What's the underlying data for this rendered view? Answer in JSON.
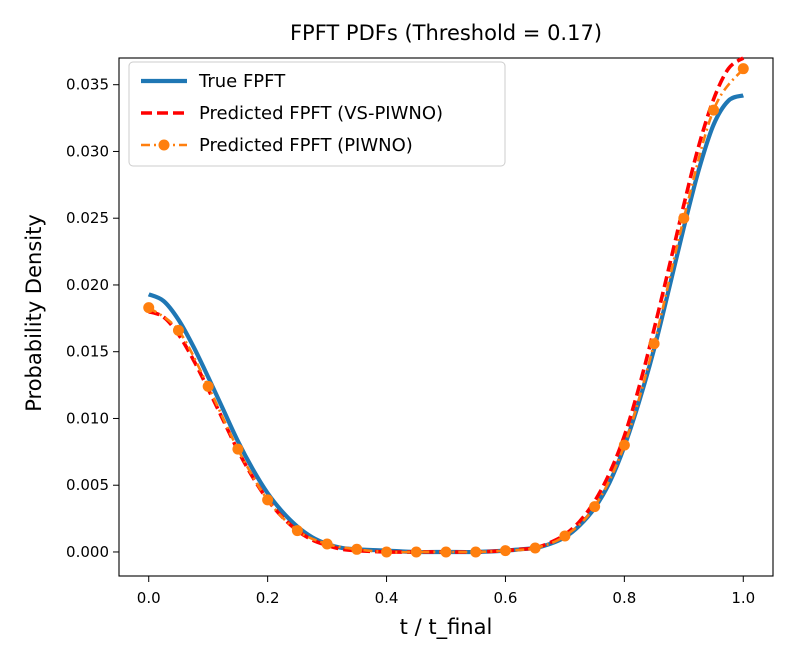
{
  "chart_data": {
    "type": "line",
    "title": "FPFT PDFs (Threshold = 0.17)",
    "xlabel": "t / t_final",
    "ylabel": "Probability Density",
    "xlim": [
      -0.05,
      1.05
    ],
    "ylim": [
      -0.0018,
      0.037
    ],
    "xticks": [
      0.0,
      0.2,
      0.4,
      0.6,
      0.8,
      1.0
    ],
    "xtick_labels": [
      "0.0",
      "0.2",
      "0.4",
      "0.6",
      "0.8",
      "1.0"
    ],
    "yticks": [
      0.0,
      0.005,
      0.01,
      0.015,
      0.02,
      0.025,
      0.03,
      0.035
    ],
    "ytick_labels": [
      "0.000",
      "0.005",
      "0.010",
      "0.015",
      "0.020",
      "0.025",
      "0.030",
      "0.035"
    ],
    "legend_position": "top-left",
    "x": [
      0.0,
      0.05,
      0.1,
      0.15,
      0.2,
      0.25,
      0.3,
      0.35,
      0.4,
      0.45,
      0.5,
      0.55,
      0.6,
      0.65,
      0.7,
      0.75,
      0.8,
      0.85,
      0.9,
      0.95,
      1.0
    ],
    "series": [
      {
        "name": "True FPFT",
        "color": "#1f77b4",
        "style": "solid",
        "x": [
          0.0,
          0.025,
          0.05,
          0.075,
          0.1,
          0.125,
          0.15,
          0.175,
          0.2,
          0.225,
          0.25,
          0.275,
          0.3,
          0.325,
          0.35,
          0.4,
          0.45,
          0.5,
          0.55,
          0.6,
          0.625,
          0.65,
          0.675,
          0.7,
          0.725,
          0.75,
          0.775,
          0.8,
          0.825,
          0.85,
          0.875,
          0.9,
          0.925,
          0.95,
          0.975,
          1.0
        ],
        "values": [
          0.0193,
          0.0188,
          0.0174,
          0.0154,
          0.0131,
          0.0107,
          0.0083,
          0.0062,
          0.0044,
          0.003,
          0.0019,
          0.0011,
          0.0006,
          0.0003,
          0.0002,
          0.0001,
          0.0,
          0.0,
          0.0,
          0.0001,
          0.0002,
          0.0003,
          0.0006,
          0.0011,
          0.002,
          0.0033,
          0.0052,
          0.0079,
          0.0113,
          0.0152,
          0.0197,
          0.0243,
          0.0286,
          0.032,
          0.0338,
          0.0342
        ]
      },
      {
        "name": "Predicted FPFT (VS-PIWNO)",
        "color": "#ff0000",
        "style": "dashed",
        "x": [
          0.0,
          0.025,
          0.05,
          0.075,
          0.1,
          0.125,
          0.15,
          0.175,
          0.2,
          0.225,
          0.25,
          0.275,
          0.3,
          0.325,
          0.35,
          0.4,
          0.45,
          0.5,
          0.55,
          0.6,
          0.625,
          0.65,
          0.675,
          0.7,
          0.725,
          0.75,
          0.775,
          0.8,
          0.825,
          0.85,
          0.875,
          0.9,
          0.925,
          0.95,
          0.975,
          1.0
        ],
        "values": [
          0.018,
          0.0176,
          0.0163,
          0.0144,
          0.0122,
          0.0099,
          0.0076,
          0.0056,
          0.0039,
          0.0026,
          0.0016,
          0.0009,
          0.0005,
          0.0002,
          0.0001,
          0.0,
          0.0,
          0.0,
          0.0,
          0.0001,
          0.0002,
          0.0003,
          0.0007,
          0.0013,
          0.0023,
          0.0038,
          0.0059,
          0.0087,
          0.0124,
          0.0167,
          0.0213,
          0.026,
          0.0304,
          0.0339,
          0.0362,
          0.037
        ]
      },
      {
        "name": "Predicted FPFT (PIWNO)",
        "color": "#ff7f0e",
        "style": "dashdot",
        "marker": "circle",
        "x": [
          0.0,
          0.05,
          0.1,
          0.15,
          0.2,
          0.25,
          0.3,
          0.35,
          0.4,
          0.45,
          0.5,
          0.55,
          0.6,
          0.65,
          0.7,
          0.75,
          0.8,
          0.85,
          0.9,
          0.95,
          1.0
        ],
        "values": [
          0.0183,
          0.0166,
          0.0124,
          0.0077,
          0.0039,
          0.0016,
          0.0006,
          0.0002,
          0.0,
          0.0,
          0.0,
          0.0,
          0.0001,
          0.0003,
          0.0012,
          0.0034,
          0.008,
          0.0156,
          0.025,
          0.0331,
          0.0362
        ]
      }
    ]
  }
}
